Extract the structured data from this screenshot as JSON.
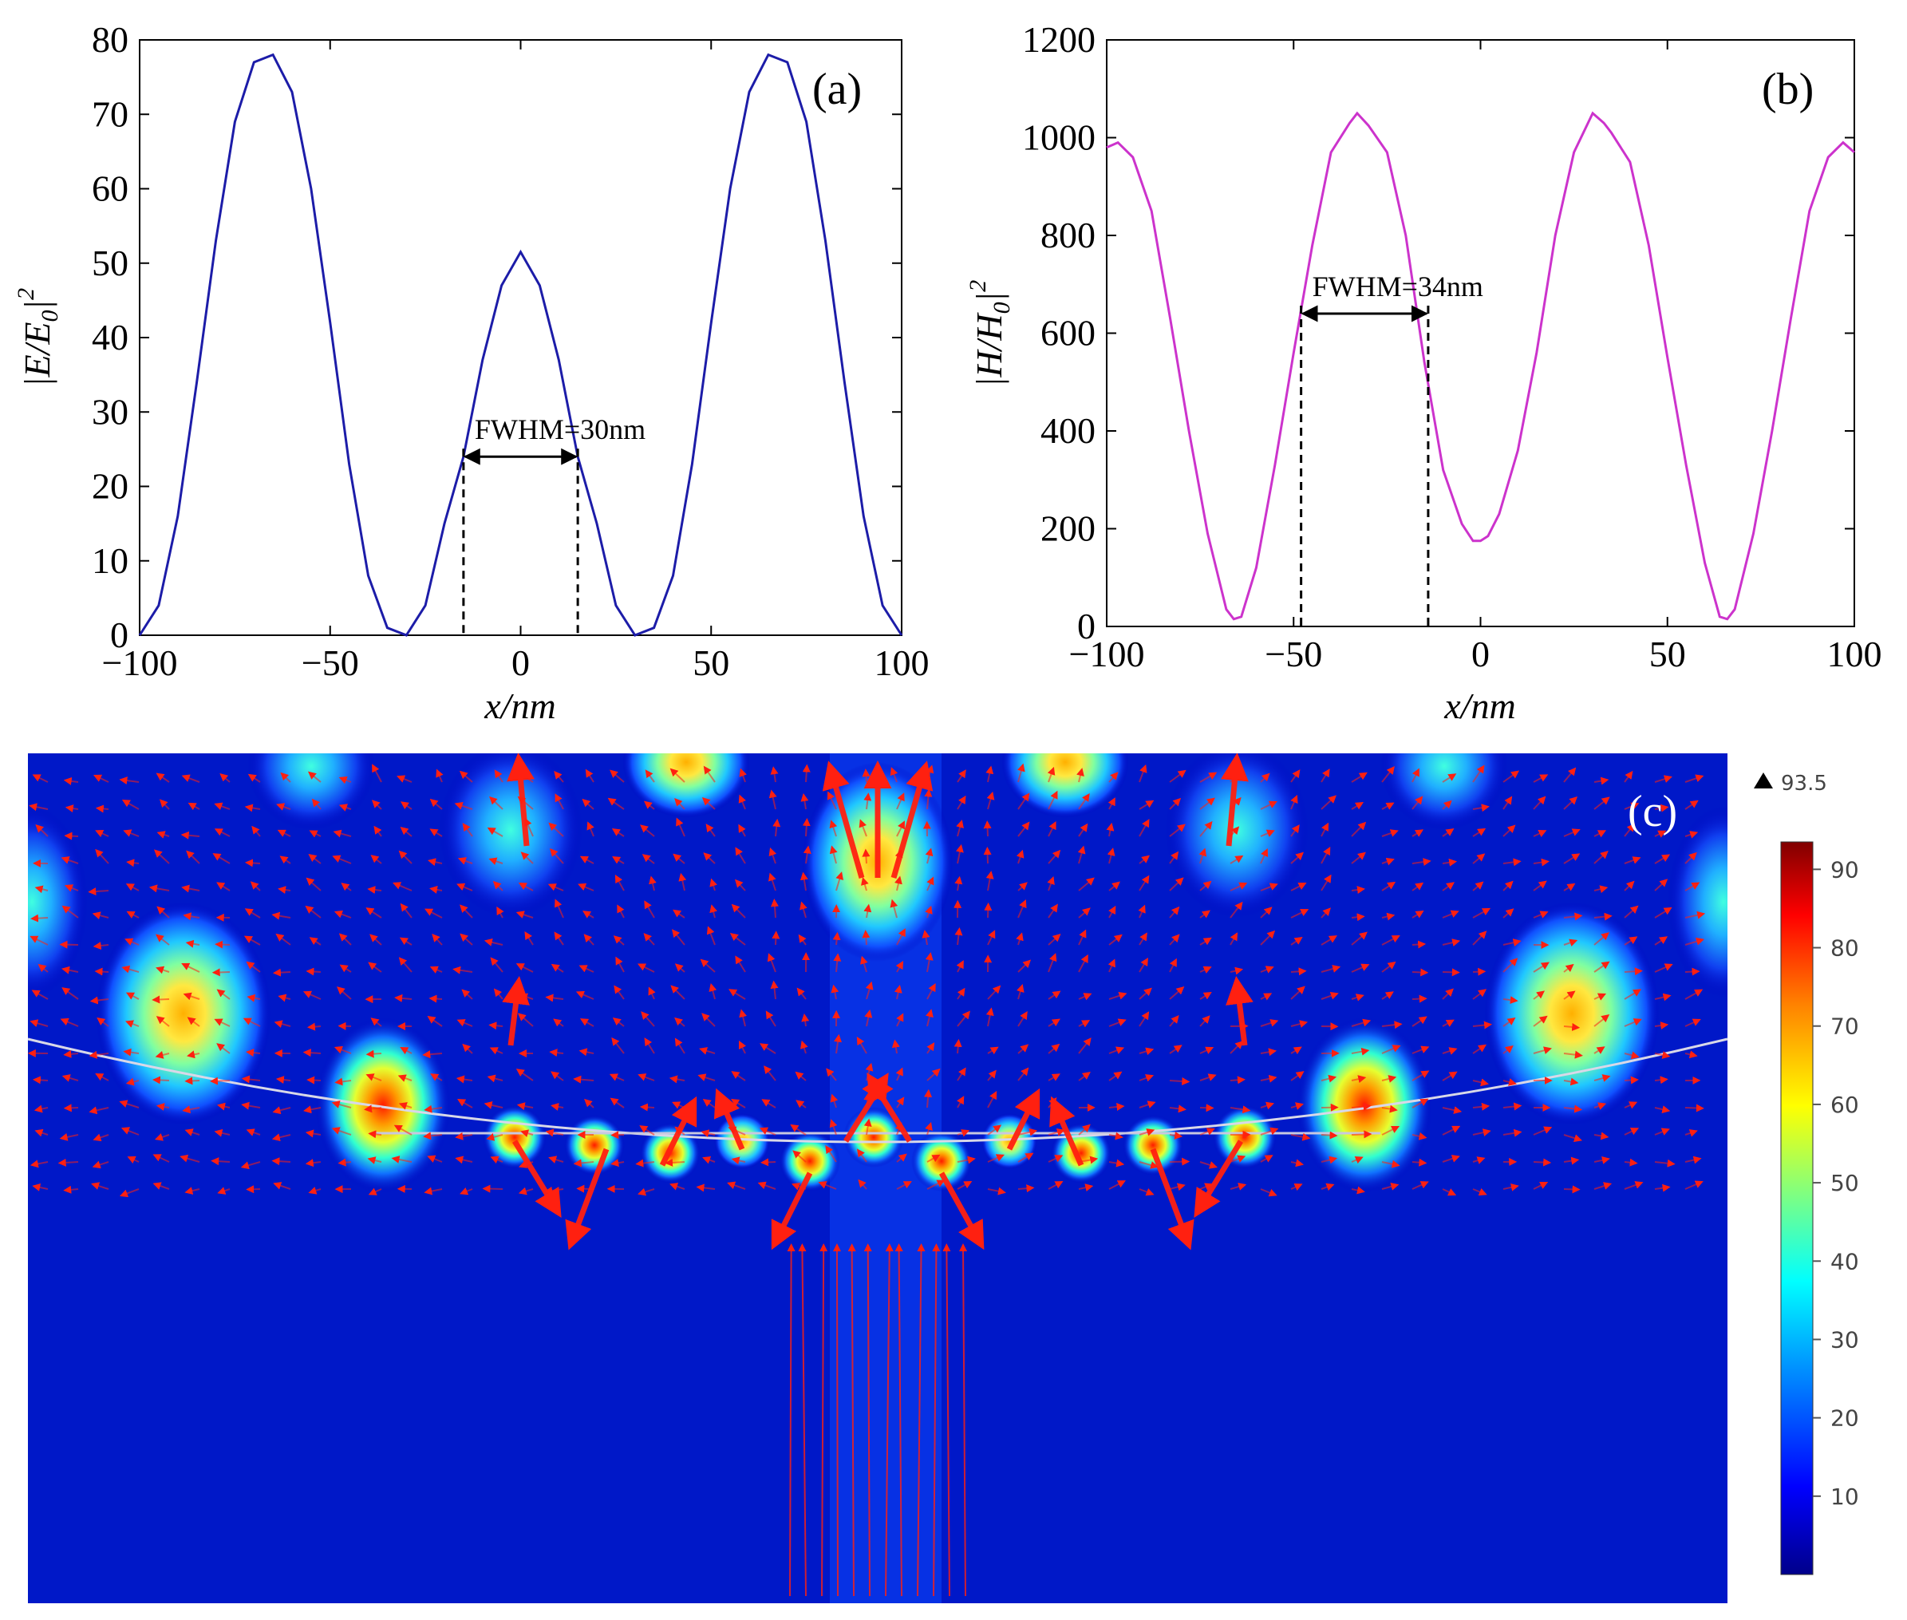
{
  "chart_data": [
    {
      "type": "line",
      "panel_label": "(a)",
      "xlabel": "x/nm",
      "ylabel_base": "|E/E",
      "ylabel_sub": "0",
      "ylabel_end": "|",
      "ylabel_sup": "2",
      "xlim": [
        -100,
        100
      ],
      "ylim": [
        0,
        80
      ],
      "xticks": [
        -100,
        -50,
        0,
        50,
        100
      ],
      "yticks": [
        0,
        10,
        20,
        30,
        40,
        50,
        60,
        70,
        80
      ],
      "line_color": "#1c1ca8",
      "series": [
        {
          "name": "|E/E0|^2",
          "x": [
            -100,
            -95,
            -90,
            -85,
            -80,
            -75,
            -70,
            -65,
            -60,
            -55,
            -50,
            -45,
            -40,
            -35,
            -30,
            -25,
            -20,
            -15,
            -10,
            -5,
            0,
            5,
            10,
            15,
            20,
            25,
            30,
            35,
            40,
            45,
            50,
            55,
            60,
            65,
            70,
            75,
            80,
            85,
            90,
            95,
            100
          ],
          "y": [
            0,
            4,
            16,
            34,
            53,
            69,
            77,
            78,
            73,
            60,
            42,
            23,
            8,
            1,
            0,
            4,
            15,
            24,
            37,
            47,
            51.5,
            47,
            37,
            24,
            15,
            4,
            0,
            1,
            8,
            23,
            42,
            60,
            73,
            78,
            77,
            69,
            53,
            34,
            16,
            4,
            0
          ]
        }
      ],
      "annotation": {
        "text": "FWHM=30nm",
        "x_left": -15,
        "x_right": 15,
        "y": 24
      }
    },
    {
      "type": "line",
      "panel_label": "(b)",
      "xlabel": "x/nm",
      "ylabel_base": "|H/H",
      "ylabel_sub": "0",
      "ylabel_end": "|",
      "ylabel_sup": "2",
      "xlim": [
        -100,
        100
      ],
      "ylim": [
        0,
        1200
      ],
      "xticks": [
        -100,
        -50,
        0,
        50,
        100
      ],
      "yticks": [
        0,
        200,
        400,
        600,
        800,
        1000,
        1200
      ],
      "line_color": "#cc33cc",
      "series": [
        {
          "name": "|H/H0|^2",
          "x": [
            -100,
            -97,
            -93,
            -88,
            -83,
            -78,
            -73,
            -68,
            -66,
            -64,
            -60,
            -55,
            -50,
            -45,
            -40,
            -35,
            -33,
            -30,
            -25,
            -20,
            -15,
            -10,
            -5,
            -2,
            0,
            2,
            5,
            10,
            15,
            20,
            25,
            30,
            33,
            35,
            40,
            45,
            50,
            55,
            60,
            64,
            66,
            68,
            73,
            78,
            83,
            88,
            93,
            97,
            100
          ],
          "y": [
            980,
            990,
            960,
            850,
            630,
            400,
            190,
            35,
            15,
            20,
            120,
            330,
            560,
            780,
            970,
            1030,
            1050,
            1025,
            970,
            800,
            540,
            320,
            210,
            175,
            175,
            185,
            230,
            360,
            560,
            800,
            970,
            1050,
            1030,
            1010,
            950,
            780,
            550,
            330,
            130,
            20,
            15,
            35,
            190,
            400,
            630,
            850,
            960,
            990,
            970
          ]
        }
      ],
      "annotation": {
        "text": "FWHM=34nm",
        "x_left": -48,
        "x_right": -14,
        "y": 640
      }
    },
    {
      "type": "heatmap",
      "panel_label": "(c)",
      "colorbar_max_label": "93.5",
      "colorbar_ticks": [
        10,
        20,
        30,
        40,
        50,
        60,
        70,
        80,
        90
      ],
      "colorbar_range": [
        0,
        93.5
      ]
    }
  ]
}
